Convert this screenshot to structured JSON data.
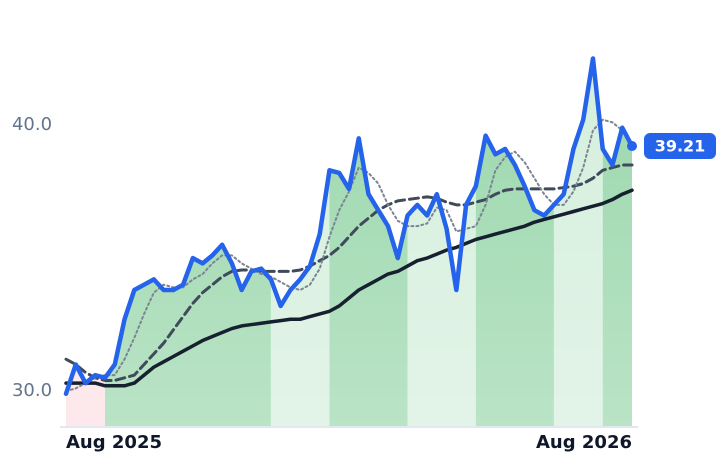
{
  "chart_data": {
    "type": "line",
    "categories": [
      "Aug 2025",
      null,
      null,
      null,
      null,
      null,
      null,
      null,
      null,
      null,
      null,
      null,
      null,
      null,
      null,
      null,
      null,
      null,
      null,
      null,
      null,
      null,
      null,
      null,
      null,
      null,
      null,
      null,
      null,
      null,
      null,
      null,
      null,
      null,
      null,
      null,
      null,
      null,
      null,
      null,
      null,
      null,
      null,
      null,
      null,
      null,
      null,
      null,
      null,
      null,
      null,
      null,
      null,
      null,
      null,
      null,
      null,
      null,
      "Aug 2026"
    ],
    "series": [
      {
        "color": "#2563eb",
        "style": "solid",
        "width": 4.5,
        "area": true,
        "values": [
          29.9,
          31.0,
          30.3,
          30.6,
          30.5,
          31.0,
          32.7,
          33.8,
          34.0,
          34.2,
          33.8,
          33.8,
          34.0,
          35.0,
          34.8,
          35.1,
          35.5,
          34.8,
          33.8,
          34.5,
          34.6,
          34.2,
          33.2,
          33.8,
          34.2,
          34.7,
          35.9,
          38.3,
          38.2,
          37.6,
          39.5,
          37.4,
          36.8,
          36.2,
          35.0,
          36.6,
          37.0,
          36.6,
          37.4,
          36.1,
          33.8,
          37.0,
          37.7,
          39.6,
          38.9,
          39.1,
          38.5,
          37.7,
          36.8,
          36.6,
          37.0,
          37.4,
          39.1,
          40.2,
          42.5,
          39.1,
          38.5,
          39.9,
          39.21
        ]
      },
      {
        "color": "#7b8594",
        "style": "dotted",
        "width": 2,
        "values": [
          30.0,
          30.1,
          30.3,
          30.5,
          30.6,
          30.6,
          31.2,
          32.0,
          32.9,
          33.7,
          34.0,
          33.9,
          33.9,
          34.2,
          34.4,
          34.8,
          35.1,
          35.1,
          34.8,
          34.6,
          34.4,
          34.3,
          34.1,
          33.9,
          33.8,
          34.0,
          34.6,
          35.8,
          36.8,
          37.5,
          38.4,
          38.2,
          37.8,
          37.0,
          36.4,
          36.2,
          36.2,
          36.3,
          36.9,
          36.8,
          36.0,
          36.1,
          36.2,
          37.0,
          38.3,
          38.8,
          39.0,
          38.6,
          38.0,
          37.4,
          37.0,
          37.0,
          37.5,
          38.4,
          39.8,
          40.2,
          40.1,
          39.8,
          39.3
        ]
      },
      {
        "color": "#3f4a5a",
        "style": "dashed",
        "width": 3,
        "values": [
          31.2,
          31.0,
          30.7,
          30.5,
          30.4,
          30.4,
          30.5,
          30.6,
          31.0,
          31.4,
          31.8,
          32.3,
          32.8,
          33.3,
          33.7,
          34.0,
          34.3,
          34.5,
          34.55,
          34.55,
          34.5,
          34.5,
          34.5,
          34.5,
          34.55,
          34.7,
          34.9,
          35.1,
          35.4,
          35.8,
          36.2,
          36.5,
          36.8,
          37.0,
          37.15,
          37.2,
          37.25,
          37.3,
          37.25,
          37.1,
          37.0,
          37.0,
          37.1,
          37.2,
          37.4,
          37.55,
          37.6,
          37.6,
          37.6,
          37.6,
          37.6,
          37.65,
          37.7,
          37.8,
          38.0,
          38.3,
          38.4,
          38.5,
          38.5
        ]
      },
      {
        "color": "#17202e",
        "style": "solid",
        "width": 3.5,
        "values": [
          30.3,
          30.3,
          30.3,
          30.3,
          30.2,
          30.2,
          30.2,
          30.3,
          30.6,
          30.9,
          31.1,
          31.3,
          31.5,
          31.7,
          31.9,
          32.05,
          32.2,
          32.35,
          32.45,
          32.5,
          32.55,
          32.6,
          32.65,
          32.7,
          32.7,
          32.8,
          32.9,
          33.0,
          33.2,
          33.5,
          33.8,
          34.0,
          34.2,
          34.4,
          34.5,
          34.7,
          34.9,
          35.0,
          35.15,
          35.3,
          35.4,
          35.55,
          35.7,
          35.8,
          35.9,
          36.0,
          36.1,
          36.2,
          36.35,
          36.45,
          36.55,
          36.65,
          36.75,
          36.85,
          36.95,
          37.05,
          37.2,
          37.4,
          37.55
        ]
      }
    ],
    "regions": [
      {
        "from": 0,
        "to": 4,
        "color": "#fcdde3"
      },
      {
        "from": 4,
        "to": 21,
        "color": "#95d5a8"
      },
      {
        "from": 21,
        "to": 27,
        "color": "#d3eedb"
      },
      {
        "from": 27,
        "to": 35,
        "color": "#95d5a8"
      },
      {
        "from": 35,
        "to": 42,
        "color": "#d3eedb"
      },
      {
        "from": 42,
        "to": 50,
        "color": "#95d5a8"
      },
      {
        "from": 50,
        "to": 55,
        "color": "#d3eedb"
      },
      {
        "from": 55,
        "to": 58,
        "color": "#95d5a8"
      }
    ],
    "ylim": [
      28.65,
      44.7
    ],
    "yticks": [
      {
        "value": 30,
        "label": "30.0"
      },
      {
        "value": 40,
        "label": "40.0"
      }
    ],
    "grid": false
  }
}
